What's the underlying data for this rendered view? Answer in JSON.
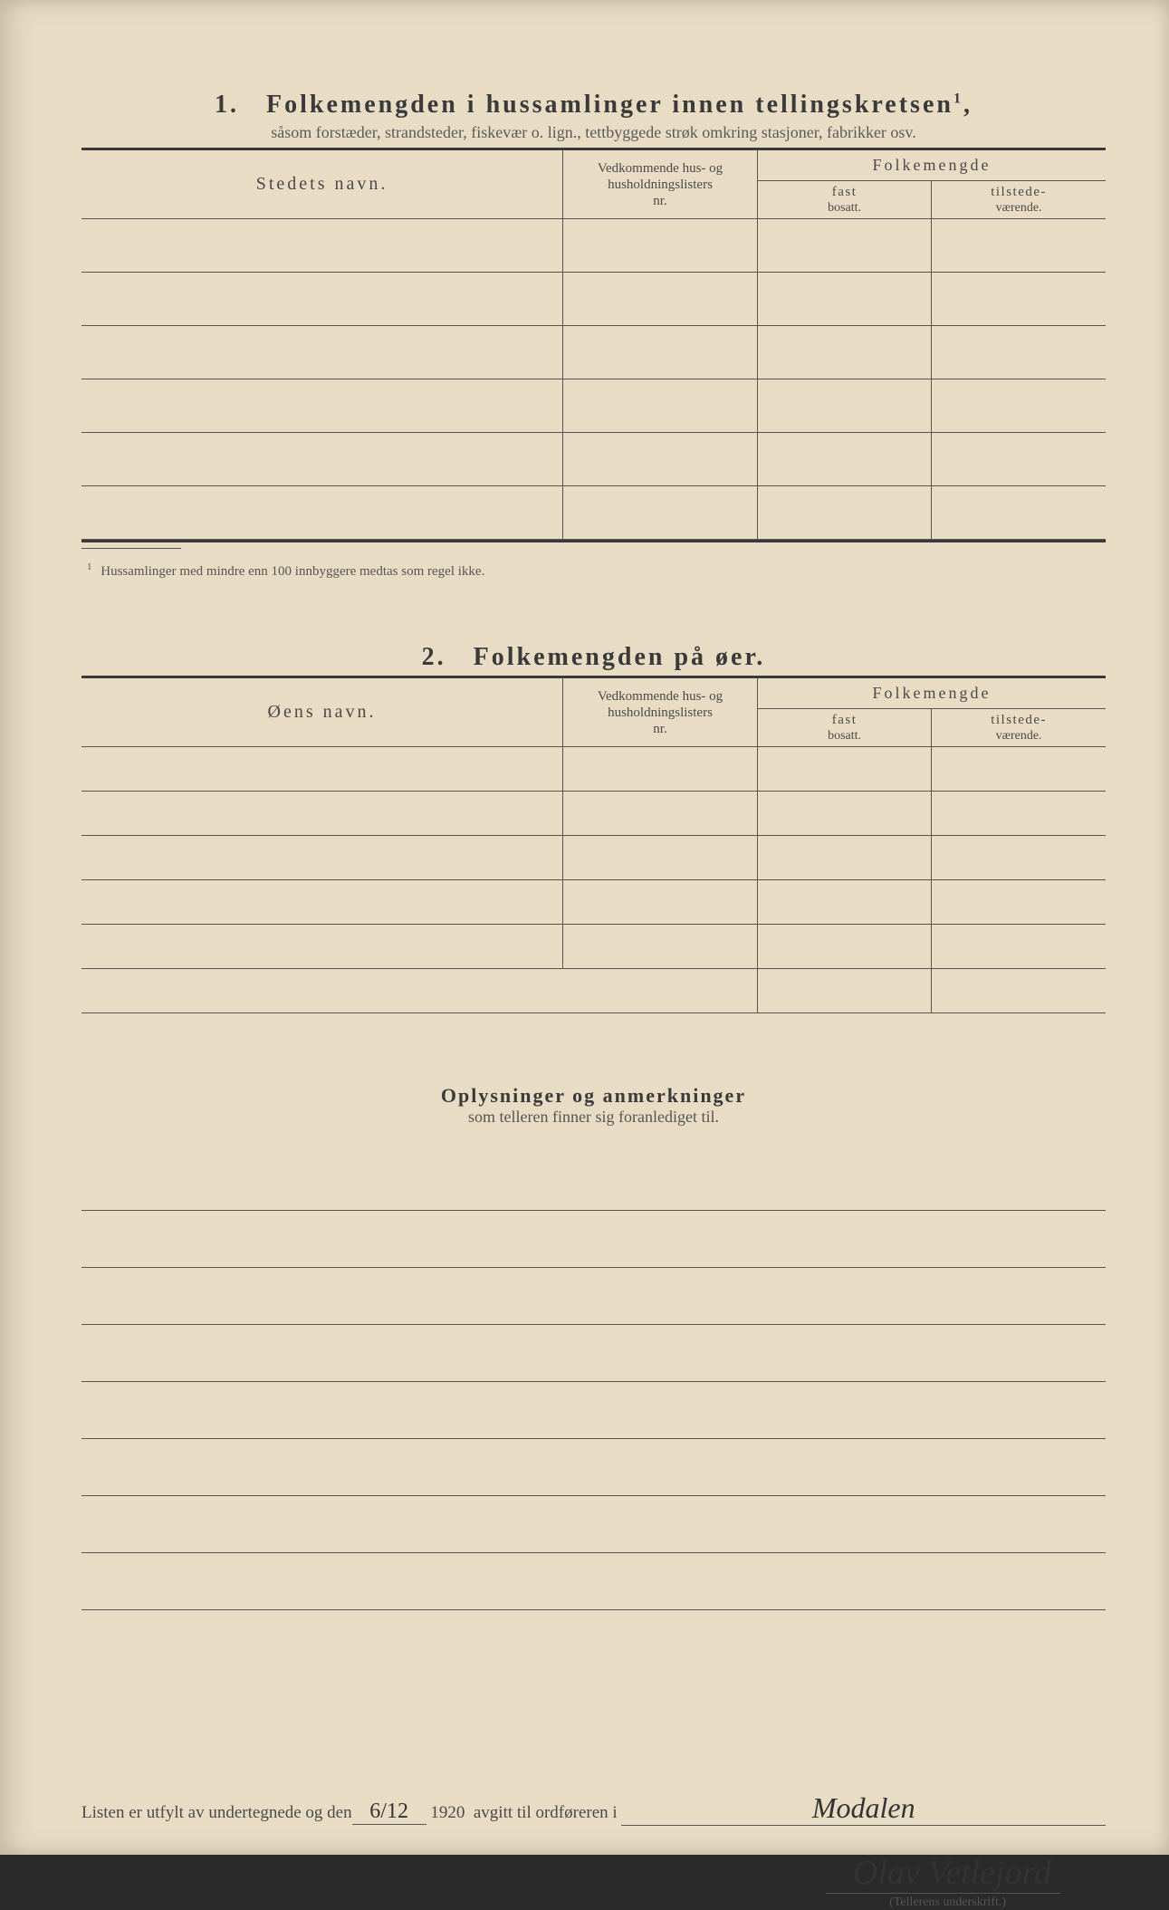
{
  "section1": {
    "number": "1.",
    "title": "Folkemengden i hussamlinger innen tellingskretsen",
    "title_sup": "1",
    "subtitle": "såsom forstæder, strandsteder, fiskevær o. lign., tettbyggede strøk omkring stasjoner, fabrikker osv.",
    "col_name": "Stedets navn.",
    "col_lister_l1": "Vedkommende hus- og",
    "col_lister_l2": "husholdningslisters",
    "col_lister_l3": "nr.",
    "col_folkemengde": "Folkemengde",
    "col_fast_l1": "fast",
    "col_fast_l2": "bosatt.",
    "col_tilst_l1": "tilstede-",
    "col_tilst_l2": "værende.",
    "footnote_num": "1",
    "footnote": "Hussamlinger med mindre enn 100 innbyggere medtas som regel ikke."
  },
  "section2": {
    "number": "2.",
    "title": "Folkemengden på øer.",
    "col_name": "Øens navn.",
    "col_lister_l1": "Vedkommende hus- og",
    "col_lister_l2": "husholdningslisters",
    "col_lister_l3": "nr.",
    "col_folkemengde": "Folkemengde",
    "col_fast_l1": "fast",
    "col_fast_l2": "bosatt.",
    "col_tilst_l1": "tilstede-",
    "col_tilst_l2": "værende."
  },
  "remarks": {
    "title": "Oplysninger og anmerkninger",
    "subtitle": "som telleren finner sig foranlediget til."
  },
  "footer": {
    "text_pre": "Listen er utfylt av undertegnede og den",
    "date_written": "6/12",
    "year": "1920",
    "text_mid": "avgitt til ordføreren i",
    "place_written": "Modalen",
    "signature": "Olav Vetlejord",
    "sig_label": "(Tellerens underskrift.)"
  },
  "style": {
    "page_bg": "#e8ddc4",
    "text_color": "#3a3a3a",
    "rule_color": "#555555",
    "row_count_s1": 6,
    "row_count_s2": 6,
    "remark_lines": 8
  }
}
